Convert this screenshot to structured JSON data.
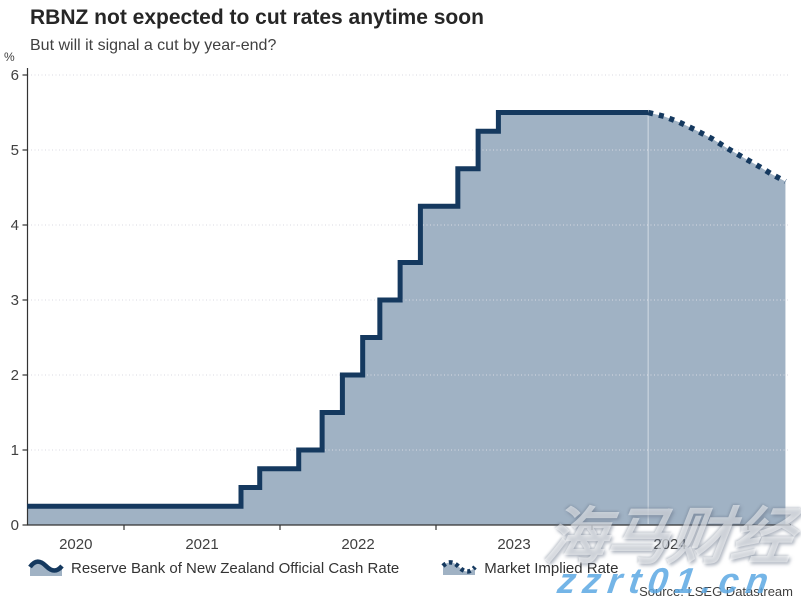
{
  "header": {
    "title": "RBNZ not expected to cut rates anytime soon",
    "subtitle": "But will it signal a cut by year-end?"
  },
  "legend": {
    "items": [
      {
        "label": "Reserve Bank of New Zealand Official Cash Rate",
        "style": "solid-step-area",
        "icon": "wave-area-icon"
      },
      {
        "label": "Market Implied Rate",
        "style": "dotted-line",
        "icon": "dotted-wave-icon"
      }
    ]
  },
  "source": "Source: LSEG Datastream",
  "watermark": {
    "brand": "海马财经",
    "site": "zzrt01.cn"
  },
  "colors": {
    "line_navy": "#15395f",
    "area_fill": "#a0b2c4",
    "grid": "#d9d9e2",
    "axis": "#333333",
    "tick_text": "#404040",
    "title_text": "#262626",
    "watermark_site_blue": "#5ca8e3"
  },
  "chart_data": {
    "type": "area",
    "title": "RBNZ not expected to cut rates anytime soon",
    "subtitle": "But will it signal a cut by year-end?",
    "ylabel": "%",
    "xlabel": "",
    "ylim": [
      0,
      6
    ],
    "xlim": [
      2020.38,
      2025.24
    ],
    "y_ticks": [
      0,
      1,
      2,
      3,
      4,
      5,
      6
    ],
    "x_year_boundaries": [
      2021,
      2022,
      2023,
      2024,
      2025
    ],
    "x_year_labels": [
      2020,
      2021,
      2022,
      2023,
      2024
    ],
    "grid": "dotted-horizontal",
    "legend_position": "bottom",
    "series": [
      {
        "name": "Reserve Bank of New Zealand Official Cash Rate",
        "type": "step-area",
        "line_style": "solid",
        "end_x": 2024.36,
        "changes": [
          [
            2020.38,
            0.25
          ],
          [
            2021.75,
            0.5
          ],
          [
            2021.87,
            0.75
          ],
          [
            2022.12,
            1.0
          ],
          [
            2022.27,
            1.5
          ],
          [
            2022.4,
            2.0
          ],
          [
            2022.53,
            2.5
          ],
          [
            2022.64,
            3.0
          ],
          [
            2022.77,
            3.5
          ],
          [
            2022.9,
            4.25
          ],
          [
            2023.14,
            4.75
          ],
          [
            2023.27,
            5.25
          ],
          [
            2023.4,
            5.5
          ]
        ]
      },
      {
        "name": "Market Implied Rate",
        "type": "line-area",
        "line_style": "dotted",
        "points": [
          [
            2024.36,
            5.5
          ],
          [
            2024.46,
            5.45
          ],
          [
            2024.56,
            5.37
          ],
          [
            2024.66,
            5.27
          ],
          [
            2024.77,
            5.15
          ],
          [
            2024.87,
            5.02
          ],
          [
            2024.97,
            4.9
          ],
          [
            2025.08,
            4.77
          ],
          [
            2025.15,
            4.68
          ],
          [
            2025.24,
            4.58
          ]
        ]
      }
    ]
  }
}
